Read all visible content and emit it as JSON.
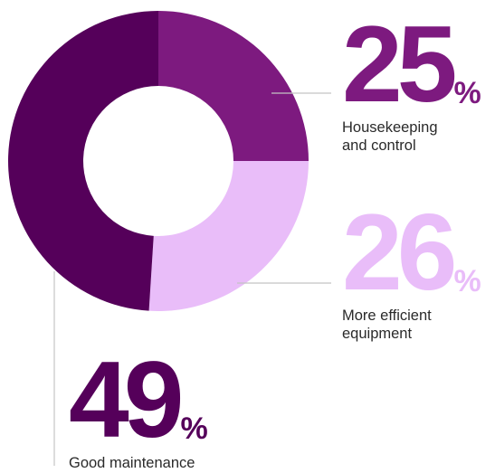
{
  "chart_data": {
    "type": "pie",
    "donut": true,
    "start_angle": "12 o'clock",
    "direction": "clockwise",
    "slices": [
      {
        "label": "Housekeeping and control",
        "label_lines": [
          "Housekeeping",
          "and control"
        ],
        "value": 25,
        "value_text": "25",
        "unit": "%",
        "color": "#7d1a7f",
        "text_color": "#7d1a7f"
      },
      {
        "label": "More efficient equipment",
        "label_lines": [
          "More efficient",
          "equipment"
        ],
        "value": 26,
        "value_text": "26",
        "unit": "%",
        "color": "#e9bdf9",
        "text_color": "#e9bdf9"
      },
      {
        "label": "Good maintenance",
        "label_lines": [
          "Good maintenance"
        ],
        "value": 49,
        "value_text": "49",
        "unit": "%",
        "color": "#55005a",
        "text_color": "#55005a"
      }
    ],
    "leader_line_color": "#c4c4c4"
  }
}
